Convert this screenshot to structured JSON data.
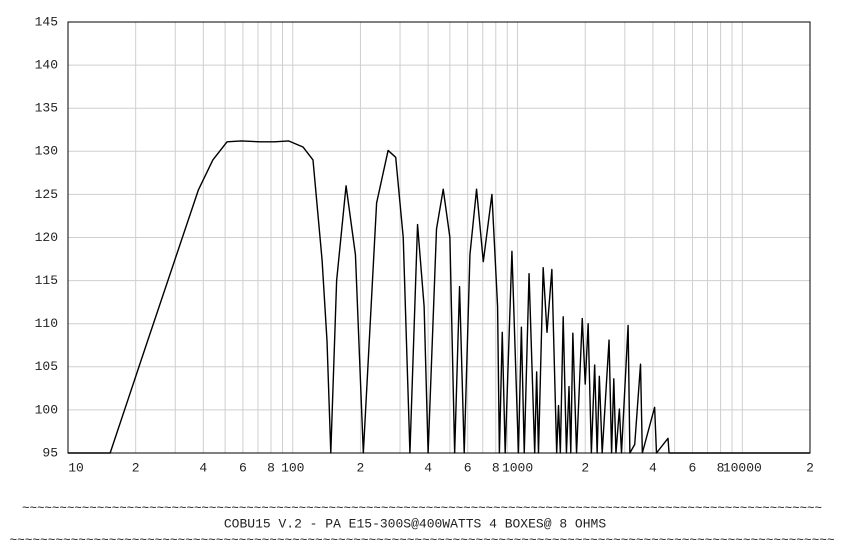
{
  "chart_data": {
    "type": "line",
    "log_x": true,
    "grid": true,
    "color": "#000000",
    "xlim": [
      10,
      20000
    ],
    "ylim": [
      95,
      145
    ],
    "yticks": [
      95,
      100,
      105,
      110,
      115,
      120,
      125,
      130,
      135,
      140,
      145
    ],
    "xticks": [
      10,
      {
        "value": 20,
        "label": "2"
      },
      {
        "value": 40,
        "label": "4"
      },
      {
        "value": 60,
        "label": "6"
      },
      {
        "value": 80,
        "label": "8"
      },
      100,
      {
        "value": 200,
        "label": "2"
      },
      {
        "value": 400,
        "label": "4"
      },
      {
        "value": 600,
        "label": "6"
      },
      {
        "value": 800,
        "label": "8"
      },
      1000,
      {
        "value": 2000,
        "label": "2"
      },
      {
        "value": 4000,
        "label": "4"
      },
      {
        "value": 6000,
        "label": "6"
      },
      {
        "value": 8000,
        "label": "8"
      },
      10000,
      {
        "value": 20000,
        "label": "2"
      }
    ],
    "x": [
      10,
      15.4,
      22.2,
      38,
      44.1,
      51,
      59,
      71.8,
      83,
      96,
      111,
      123,
      135,
      142,
      147.6,
      156.7,
      172.6,
      190,
      206,
      236,
      265.5,
      287,
      310,
      332,
      359,
      384,
      400,
      436,
      467,
      500,
      525,
      552,
      579,
      614,
      657,
      704,
      769,
      815,
      830,
      855,
      881,
      944,
      1009,
      1040,
      1071,
      1125,
      1192,
      1216,
      1239,
      1300,
      1352,
      1421,
      1493,
      1521,
      1550,
      1596,
      1650,
      1694,
      1725,
      1762,
      1830,
      1940,
      2000,
      2061,
      2130,
      2203,
      2260,
      2311,
      2380,
      2553,
      2620,
      2680,
      2740,
      2838,
      2900,
      3103,
      3160,
      3321,
      3524,
      3590,
      4072,
      4150,
      4670,
      4720,
      20000
    ],
    "values": [
      95,
      95,
      107.4,
      125.5,
      129,
      131.1,
      131.2,
      131.1,
      131.1,
      131.2,
      130.5,
      129,
      117.4,
      108,
      95,
      115,
      126,
      118,
      95,
      124,
      130.1,
      129.3,
      120,
      95,
      121.5,
      112,
      95,
      121,
      125.6,
      120,
      95,
      114.3,
      95,
      118,
      125.6,
      117.2,
      125,
      112,
      95,
      109,
      95,
      118.4,
      95,
      109.6,
      95,
      115.8,
      95,
      104.4,
      95,
      116.5,
      109,
      116.3,
      95,
      100.5,
      95,
      110.8,
      95,
      102.7,
      95,
      108.9,
      95,
      110.6,
      103,
      110,
      95,
      105.2,
      95,
      103.9,
      95,
      108.1,
      95,
      103.6,
      95,
      100.1,
      95,
      109.8,
      95,
      96,
      105.3,
      95,
      100.3,
      95,
      96.7,
      95,
      95
    ],
    "separator_top": "~~~~~~~~~~~~~~~~~~~~~~~~~~~~~~~~~~~~~~~~~~~~~~~~~~~~~~~~~~~~~~~~~~~~~~~~~~~~~~~~~~~~~~~~~~~~~~~~~~~~~~~~~~~",
    "title": "COBU15 V.2 - PA E15-300S@400WATTS 4 BOXES@ 8 OHMS",
    "separator_bottom": "~~~~~~~~~~~~~~~~~~~~~~~~~~~~~~~~~~~~~~~~~~~~~~~~~~~~~~~~~~~~~~~~~~~~~~~~~~~~~~~~~~~~~~~~~~~~~~~~~~~~~~~~~~~~"
  }
}
